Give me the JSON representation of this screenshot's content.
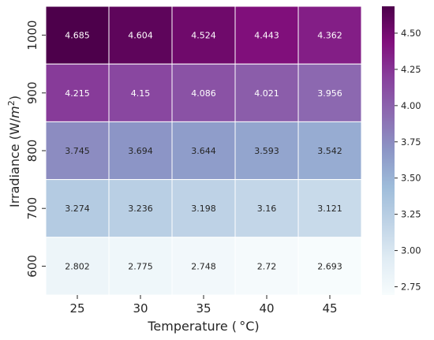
{
  "chart_data": {
    "type": "heatmap",
    "x": [
      "25",
      "30",
      "35",
      "40",
      "45"
    ],
    "y": [
      "1000",
      "900",
      "800",
      "700",
      "600"
    ],
    "values": [
      [
        4.685,
        4.604,
        4.524,
        4.443,
        4.362
      ],
      [
        4.215,
        4.15,
        4.086,
        4.021,
        3.956
      ],
      [
        3.745,
        3.694,
        3.644,
        3.593,
        3.542
      ],
      [
        3.274,
        3.236,
        3.198,
        3.16,
        3.121
      ],
      [
        2.802,
        2.775,
        2.748,
        2.72,
        2.693
      ]
    ],
    "cell_labels": [
      [
        "4.685",
        "4.604",
        "4.524",
        "4.443",
        "4.362"
      ],
      [
        "4.215",
        "4.15",
        "4.086",
        "4.021",
        "3.956"
      ],
      [
        "3.745",
        "3.694",
        "3.644",
        "3.593",
        "3.542"
      ],
      [
        "3.274",
        "3.236",
        "3.198",
        "3.16",
        "3.121"
      ],
      [
        "2.802",
        "2.775",
        "2.748",
        "2.72",
        "2.693"
      ]
    ],
    "xlabel": "Temperature ( °C)",
    "ylabel_main": "Irradiance (W/",
    "ylabel_var": "m",
    "ylabel_sup": "2",
    "ylabel_end": ")",
    "colorbar": {
      "min": 2.693,
      "max": 4.685,
      "ticks": [
        "2.75",
        "3.00",
        "3.25",
        "3.50",
        "3.75",
        "4.00",
        "4.25",
        "4.50"
      ],
      "tick_values": [
        2.75,
        3.0,
        3.25,
        3.5,
        3.75,
        4.0,
        4.25,
        4.5
      ]
    },
    "colormap": "BuPu",
    "colormap_stops": [
      "#f7fcfd",
      "#e0ecf4",
      "#bfd3e6",
      "#9ebcda",
      "#8c96c6",
      "#8c6bb1",
      "#88419d",
      "#810f7c",
      "#4d004b"
    ],
    "grid": false,
    "legend": "colorbar-right"
  }
}
